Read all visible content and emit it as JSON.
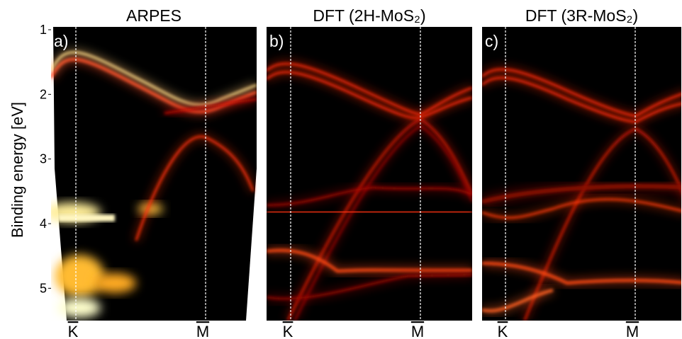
{
  "chart_data": [
    {
      "type": "heatmap",
      "title": "ARPES",
      "panel_label": "a)",
      "categories": [
        "K",
        "M"
      ],
      "ylabel": "Binding energy [eV]",
      "ylim": [
        5.5,
        1
      ],
      "yticks": [
        1,
        2,
        3,
        4,
        5
      ]
    },
    {
      "type": "heatmap",
      "title": "DFT (2H-MoS₂)",
      "panel_label": "b)",
      "categories": [
        "K",
        "M"
      ]
    },
    {
      "type": "heatmap",
      "title": "DFT (3R-MoS₂)",
      "panel_label": "c)",
      "categories": [
        "K",
        "M"
      ]
    }
  ]
}
